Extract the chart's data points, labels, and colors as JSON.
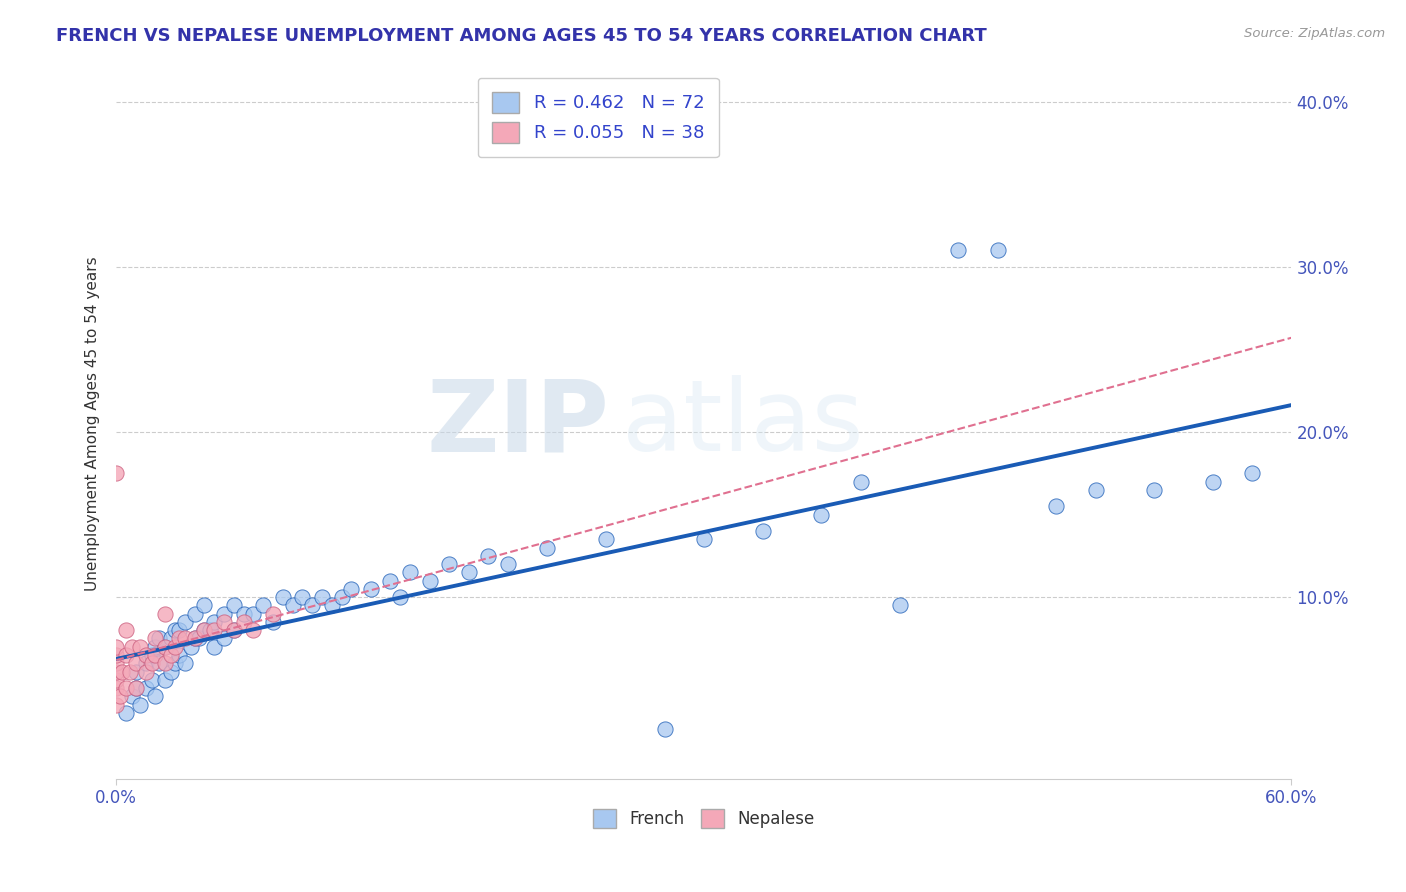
{
  "title": "FRENCH VS NEPALESE UNEMPLOYMENT AMONG AGES 45 TO 54 YEARS CORRELATION CHART",
  "source": "Source: ZipAtlas.com",
  "ylabel": "Unemployment Among Ages 45 to 54 years",
  "xlim": [
    0.0,
    0.6
  ],
  "ylim": [
    -0.01,
    0.42
  ],
  "xtick_positions": [
    0.0,
    0.6
  ],
  "xtick_labels": [
    "0.0%",
    "60.0%"
  ],
  "ytick_positions": [
    0.1,
    0.2,
    0.3,
    0.4
  ],
  "ytick_labels": [
    "10.0%",
    "20.0%",
    "30.0%",
    "40.0%"
  ],
  "french_R": 0.462,
  "french_N": 72,
  "nepalese_R": 0.055,
  "nepalese_N": 38,
  "french_color": "#a8c8f0",
  "nepalese_color": "#f4a8b8",
  "french_line_color": "#1a5bb5",
  "nepalese_line_color": "#e07090",
  "watermark_zip": "ZIP",
  "watermark_atlas": "atlas",
  "french_x": [
    0.005,
    0.008,
    0.01,
    0.01,
    0.012,
    0.015,
    0.015,
    0.018,
    0.018,
    0.02,
    0.02,
    0.022,
    0.022,
    0.025,
    0.025,
    0.028,
    0.028,
    0.03,
    0.03,
    0.032,
    0.032,
    0.035,
    0.035,
    0.038,
    0.04,
    0.04,
    0.042,
    0.045,
    0.045,
    0.048,
    0.05,
    0.05,
    0.055,
    0.055,
    0.06,
    0.06,
    0.065,
    0.07,
    0.075,
    0.08,
    0.085,
    0.09,
    0.095,
    0.1,
    0.105,
    0.11,
    0.115,
    0.12,
    0.13,
    0.14,
    0.145,
    0.15,
    0.16,
    0.17,
    0.18,
    0.19,
    0.2,
    0.22,
    0.25,
    0.28,
    0.3,
    0.33,
    0.36,
    0.38,
    0.4,
    0.43,
    0.45,
    0.48,
    0.5,
    0.53,
    0.56,
    0.58
  ],
  "french_y": [
    0.03,
    0.04,
    0.045,
    0.055,
    0.035,
    0.045,
    0.06,
    0.05,
    0.065,
    0.04,
    0.07,
    0.06,
    0.075,
    0.05,
    0.07,
    0.055,
    0.075,
    0.06,
    0.08,
    0.065,
    0.08,
    0.06,
    0.085,
    0.07,
    0.075,
    0.09,
    0.075,
    0.08,
    0.095,
    0.08,
    0.07,
    0.085,
    0.09,
    0.075,
    0.08,
    0.095,
    0.09,
    0.09,
    0.095,
    0.085,
    0.1,
    0.095,
    0.1,
    0.095,
    0.1,
    0.095,
    0.1,
    0.105,
    0.105,
    0.11,
    0.1,
    0.115,
    0.11,
    0.12,
    0.115,
    0.125,
    0.12,
    0.13,
    0.135,
    0.02,
    0.135,
    0.14,
    0.15,
    0.17,
    0.095,
    0.31,
    0.31,
    0.155,
    0.165,
    0.165,
    0.17,
    0.175
  ],
  "nepalese_x": [
    0.0,
    0.0,
    0.0,
    0.0,
    0.0,
    0.0,
    0.0,
    0.0,
    0.002,
    0.003,
    0.005,
    0.005,
    0.007,
    0.008,
    0.01,
    0.01,
    0.012,
    0.015,
    0.015,
    0.018,
    0.02,
    0.02,
    0.025,
    0.025,
    0.028,
    0.03,
    0.032,
    0.035,
    0.04,
    0.045,
    0.05,
    0.055,
    0.06,
    0.065,
    0.07,
    0.08,
    0.025,
    0.005
  ],
  "nepalese_y": [
    0.035,
    0.045,
    0.05,
    0.055,
    0.06,
    0.065,
    0.07,
    0.175,
    0.04,
    0.055,
    0.045,
    0.065,
    0.055,
    0.07,
    0.045,
    0.06,
    0.07,
    0.055,
    0.065,
    0.06,
    0.065,
    0.075,
    0.06,
    0.07,
    0.065,
    0.07,
    0.075,
    0.075,
    0.075,
    0.08,
    0.08,
    0.085,
    0.08,
    0.085,
    0.08,
    0.09,
    0.09,
    0.08
  ]
}
